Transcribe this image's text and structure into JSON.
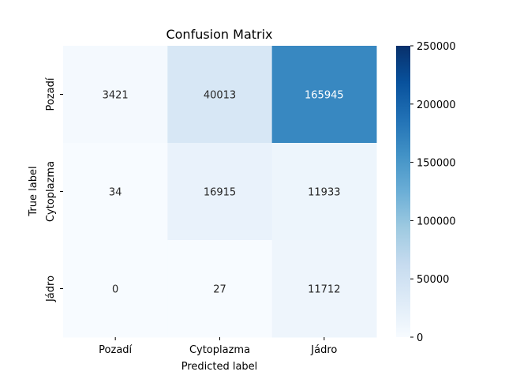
{
  "chart_data": {
    "type": "heatmap",
    "title": "Confusion Matrix",
    "xlabel": "Predicted label",
    "ylabel": "True label",
    "x_categories": [
      "Pozadí",
      "Cytoplazma",
      "Jádro"
    ],
    "y_categories": [
      "Pozadí",
      "Cytoplazma",
      "Jádro"
    ],
    "values": [
      [
        3421,
        40013,
        165945
      ],
      [
        34,
        16915,
        11933
      ],
      [
        0,
        27,
        11712
      ]
    ],
    "colormap": "Blues",
    "colorbar": {
      "min": 0,
      "max": 250000,
      "ticks": [
        0,
        50000,
        100000,
        150000,
        200000,
        250000
      ],
      "tick_labels": [
        "0",
        "50000",
        "100000",
        "150000",
        "200000",
        "250000"
      ]
    }
  }
}
